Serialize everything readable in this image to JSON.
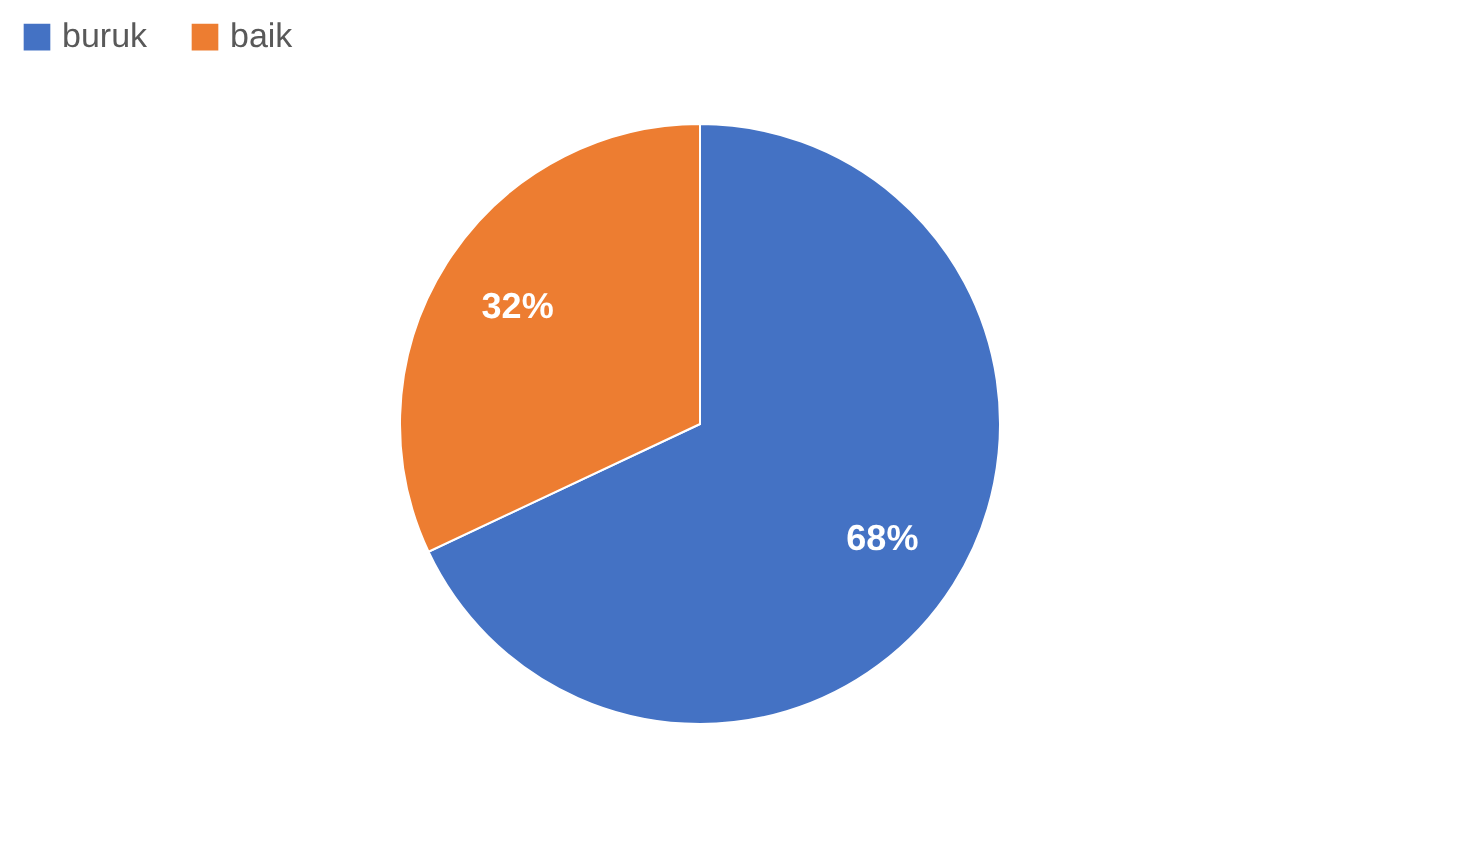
{
  "chart_data": {
    "type": "pie",
    "categories": [
      "buruk",
      "baik"
    ],
    "values": [
      68,
      32
    ],
    "colors": [
      "#4472c4",
      "#ed7d31"
    ],
    "value_labels": [
      "68%",
      "32%"
    ],
    "legend": "top"
  }
}
